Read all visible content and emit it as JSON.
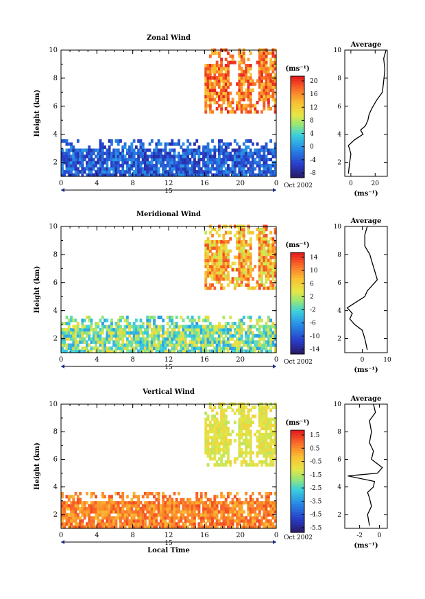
{
  "figure": {
    "date_label": "Oct 2002",
    "day_label": "15",
    "x_label": "Local Time",
    "x_ticks": [
      "0",
      "4",
      "8",
      "12",
      "16",
      "20",
      "0"
    ],
    "y_label": "Height (km)",
    "y_ticks": [
      "2",
      "4",
      "6",
      "8",
      "10"
    ]
  },
  "chart_data": [
    {
      "type": "heatmap",
      "title": "Zonal Wind",
      "xlabel": "",
      "ylabel": "Height (km)",
      "xlim": [
        0,
        24
      ],
      "ylim": [
        1,
        10
      ],
      "colorbar": {
        "unit": "(ms⁻¹)",
        "ticks": [
          "20",
          "16",
          "12",
          "8",
          "4",
          "0",
          "-4",
          "-8"
        ]
      },
      "regions": [
        {
          "name": "lower layer",
          "x": [
            0,
            24
          ],
          "y": [
            1,
            3.5
          ],
          "values_range": [
            -8,
            0
          ]
        },
        {
          "name": "upper layer",
          "x": [
            16,
            24
          ],
          "y": [
            5.5,
            10
          ],
          "values_range": [
            12,
            22
          ]
        }
      ],
      "average_profile": {
        "title": "Average",
        "xlabel": "(ms⁻¹)",
        "x_ticks": [
          "0",
          "20"
        ],
        "y_ticks": [
          "2",
          "4",
          "6",
          "8",
          "10"
        ],
        "xlim": [
          -5,
          30
        ],
        "height_km": [
          1.2,
          2,
          2.6,
          3.2,
          3.6,
          4.0,
          4.3,
          4.6,
          5.0,
          5.4,
          5.8,
          6.4,
          7.0,
          7.8,
          8.6,
          9.4,
          10.0
        ],
        "values": [
          -2,
          -1,
          0,
          -2,
          3,
          10,
          8,
          12,
          14,
          15,
          17,
          21,
          26,
          27,
          28,
          27,
          29
        ]
      }
    },
    {
      "type": "heatmap",
      "title": "Meridional Wind",
      "xlabel": "",
      "ylabel": "Height (km)",
      "xlim": [
        0,
        24
      ],
      "ylim": [
        1,
        10
      ],
      "colorbar": {
        "unit": "(ms⁻¹)",
        "ticks": [
          "14",
          "10",
          "6",
          "2",
          "-2",
          "-6",
          "-10",
          "-14"
        ]
      },
      "regions": [
        {
          "name": "lower layer",
          "x": [
            0,
            24
          ],
          "y": [
            1,
            3.5
          ],
          "values_range": [
            -6,
            6
          ]
        },
        {
          "name": "upper layer",
          "x": [
            16,
            24
          ],
          "y": [
            5.5,
            10
          ],
          "values_range": [
            2,
            14
          ]
        }
      ],
      "average_profile": {
        "title": "Average",
        "xlabel": "(ms⁻¹)",
        "x_ticks": [
          "0",
          "10"
        ],
        "y_ticks": [
          "2",
          "4",
          "6",
          "8",
          "10"
        ],
        "xlim": [
          -7,
          10
        ],
        "height_km": [
          1.2,
          2,
          2.6,
          3.0,
          3.4,
          3.8,
          4.2,
          5.0,
          5.4,
          5.8,
          6.2,
          6.8,
          7.4,
          8.0,
          8.6,
          9.4,
          10.0
        ],
        "values": [
          2,
          1,
          0,
          -3,
          -5,
          -4,
          -6,
          1,
          2,
          4,
          6,
          5,
          4,
          3,
          1,
          1,
          2
        ]
      }
    },
    {
      "type": "heatmap",
      "title": "Vertical Wind",
      "xlabel": "Local Time",
      "ylabel": "Height (km)",
      "xlim": [
        0,
        24
      ],
      "ylim": [
        1,
        10
      ],
      "colorbar": {
        "unit": "(ms⁻¹)",
        "ticks": [
          "1.5",
          "0.5",
          "-0.5",
          "-1.5",
          "-2.5",
          "-3.5",
          "-4.5",
          "-5.5"
        ]
      },
      "regions": [
        {
          "name": "lower layer",
          "x": [
            0,
            24
          ],
          "y": [
            1,
            3.5
          ],
          "values_range": [
            0,
            1.5
          ]
        },
        {
          "name": "upper layer",
          "x": [
            16,
            24
          ],
          "y": [
            5.5,
            10
          ],
          "values_range": [
            -1.5,
            -0.5
          ]
        }
      ],
      "average_profile": {
        "title": "Average",
        "xlabel": "(ms⁻¹)",
        "x_ticks": [
          "-2",
          "0"
        ],
        "y_ticks": [
          "2",
          "4",
          "6",
          "8",
          "10"
        ],
        "xlim": [
          -3.5,
          0.8
        ],
        "height_km": [
          1.2,
          2.0,
          2.6,
          3.2,
          3.6,
          4.0,
          4.4,
          4.8,
          5.0,
          5.4,
          6.0,
          6.6,
          7.2,
          8.0,
          8.8,
          9.4,
          10.0
        ],
        "values": [
          -1.0,
          -1.2,
          -0.8,
          -1.0,
          -1.2,
          -0.6,
          -0.5,
          -3.2,
          -0.2,
          0.3,
          -0.8,
          -0.6,
          -1.0,
          -0.8,
          -1.0,
          -0.4,
          -0.6
        ]
      }
    }
  ]
}
